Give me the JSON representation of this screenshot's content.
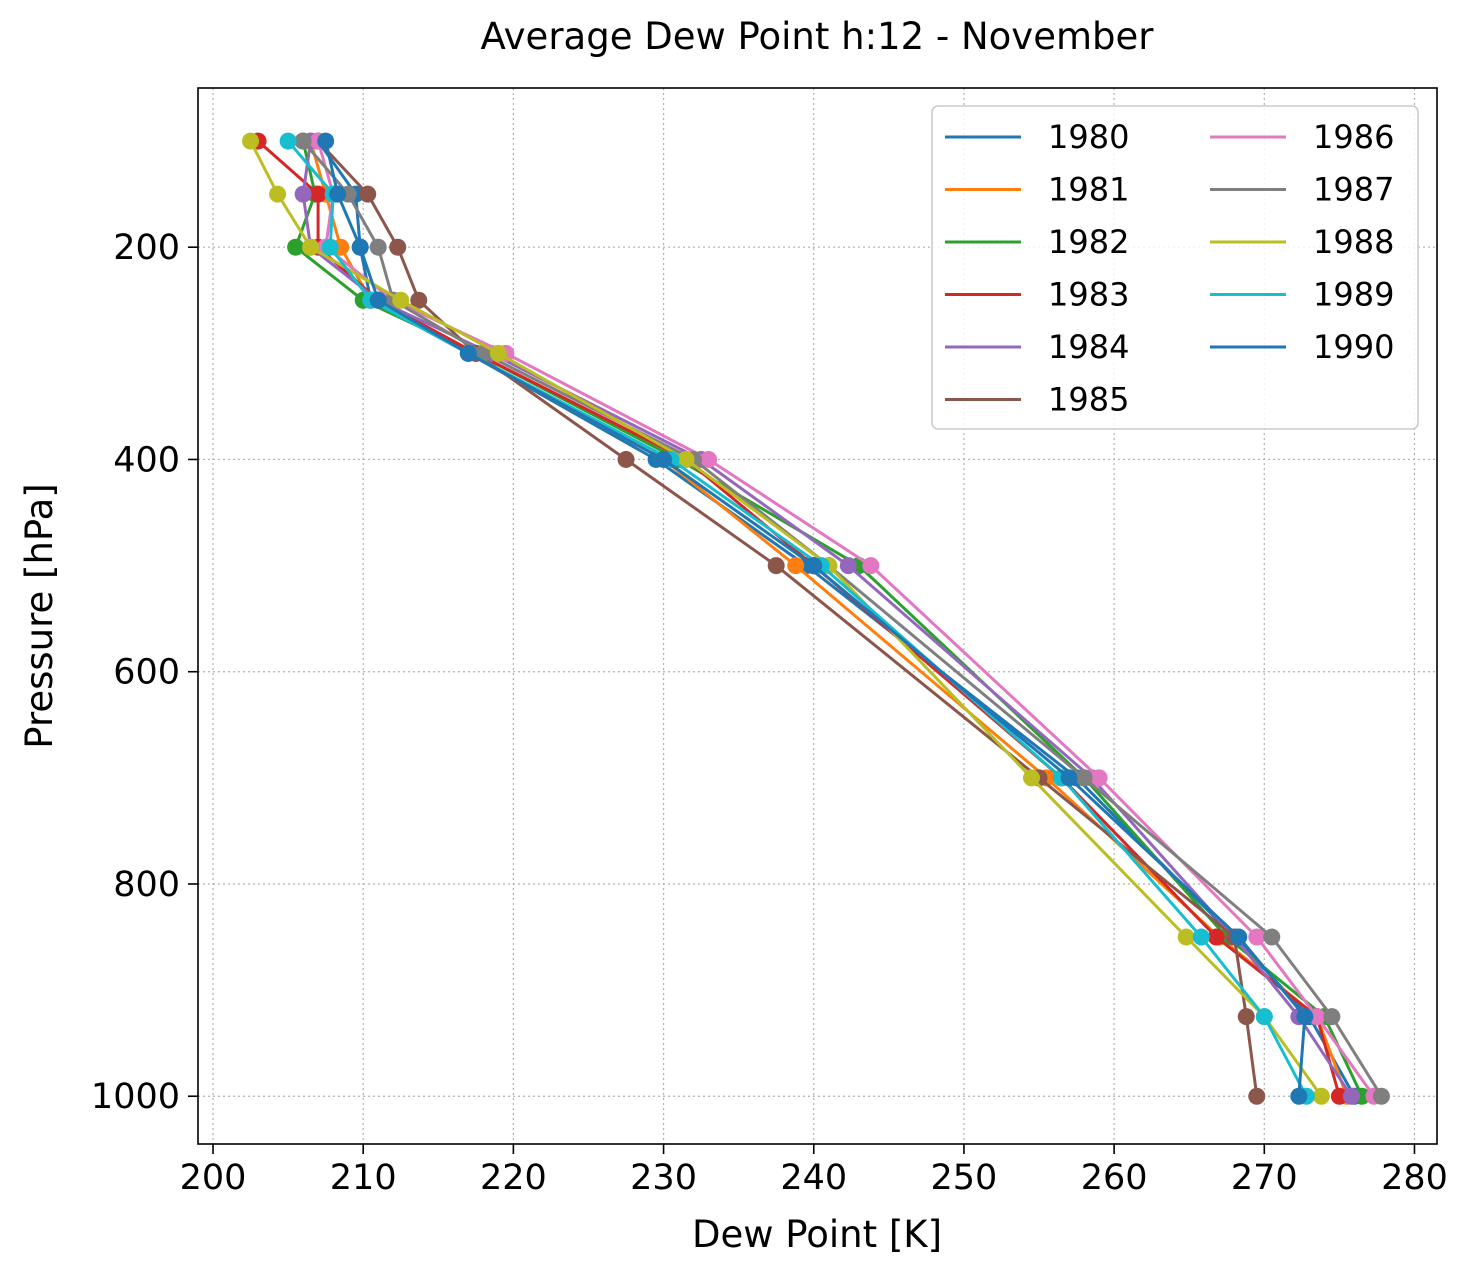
{
  "chart_data": {
    "type": "line",
    "title": "Average Dew Point h:12 - November",
    "xlabel": "Dew Point [K]",
    "ylabel": "Pressure [hPa]",
    "xlim": [
      199,
      281.5
    ],
    "ylim": [
      1045,
      50
    ],
    "y_inverted": true,
    "grid": true,
    "grid_style": "dotted",
    "legend_placement": "top-right",
    "legend_columns": 2,
    "x_ticks": [
      200,
      210,
      220,
      230,
      240,
      250,
      260,
      270,
      280
    ],
    "y_ticks": [
      200,
      400,
      600,
      800,
      1000
    ],
    "x_tick_labels": [
      "200",
      "210",
      "220",
      "230",
      "240",
      "250",
      "260",
      "270",
      "280"
    ],
    "y_tick_labels": [
      "200",
      "400",
      "600",
      "800",
      "1000"
    ],
    "pressure_levels": [
      100,
      150,
      200,
      250,
      300,
      400,
      500,
      700,
      850,
      925,
      1000
    ],
    "series": [
      {
        "name": "1980",
        "color": "#1f77b4",
        "values": [
          207.0,
          209.5,
          209.8,
          210.5,
          217.0,
          229.5,
          239.5,
          257.5,
          268.0,
          273.0,
          276.0
        ]
      },
      {
        "name": "1981",
        "color": "#ff7f0e",
        "values": [
          206.5,
          207.5,
          208.5,
          210.5,
          217.0,
          230.0,
          238.8,
          255.5,
          267.0,
          273.5,
          275.5
        ]
      },
      {
        "name": "1982",
        "color": "#2ca02c",
        "values": [
          206.0,
          206.8,
          205.5,
          210.0,
          217.5,
          231.0,
          243.0,
          258.0,
          267.5,
          274.0,
          276.5
        ]
      },
      {
        "name": "1983",
        "color": "#d62728",
        "values": [
          203.0,
          207.0,
          207.0,
          211.0,
          217.5,
          231.5,
          240.0,
          256.5,
          266.8,
          273.5,
          275.0
        ]
      },
      {
        "name": "1984",
        "color": "#9467bd",
        "values": [
          206.5,
          206.0,
          206.5,
          211.0,
          218.5,
          232.5,
          242.3,
          258.5,
          268.0,
          272.3,
          275.8
        ]
      },
      {
        "name": "1985",
        "color": "#8c564b",
        "values": [
          207.0,
          210.3,
          212.3,
          213.7,
          217.5,
          227.5,
          237.5,
          255.0,
          268.0,
          268.8,
          269.5
        ]
      },
      {
        "name": "1986",
        "color": "#e377c2",
        "values": [
          207.0,
          208.0,
          207.5,
          212.0,
          219.5,
          233.0,
          243.8,
          259.0,
          269.5,
          273.5,
          277.3
        ]
      },
      {
        "name": "1987",
        "color": "#7f7f7f",
        "values": [
          206.0,
          209.0,
          211.0,
          212.0,
          218.0,
          232.0,
          241.0,
          258.0,
          270.5,
          274.5,
          277.8
        ]
      },
      {
        "name": "1988",
        "color": "#bcbd22",
        "values": [
          202.5,
          204.3,
          206.5,
          212.5,
          219.0,
          231.5,
          241.0,
          254.5,
          264.8,
          270.0,
          273.8
        ]
      },
      {
        "name": "1989",
        "color": "#17becf",
        "values": [
          205.0,
          208.0,
          207.8,
          210.5,
          217.0,
          230.5,
          240.5,
          256.5,
          265.8,
          270.0,
          272.8
        ]
      },
      {
        "name": "1990",
        "color": "#1f77b4",
        "values": [
          207.5,
          208.3,
          209.8,
          211.0,
          217.0,
          230.0,
          240.0,
          257.0,
          268.3,
          272.7,
          272.3
        ]
      }
    ]
  }
}
